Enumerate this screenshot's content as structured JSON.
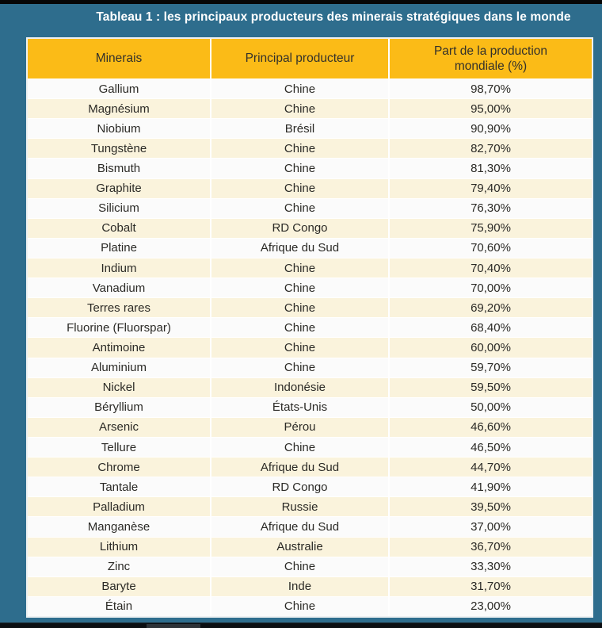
{
  "page": {
    "title": "Tableau 1 : les principaux producteurs des minerais stratégiques dans le monde"
  },
  "colors": {
    "page_background": "#2E6D8D",
    "header_background": "#FBBB17",
    "row_background": "#FBFBFB",
    "row_alt_background": "#FAF3DC",
    "title_text": "#FFFFFF",
    "cell_text": "#2B2A26",
    "top_bar": "#060606",
    "bottom_bar": "#0B0E12",
    "scrollbar_thumb": "#2E3338"
  },
  "table": {
    "columns": [
      {
        "key": "mineral",
        "label": "Minerais"
      },
      {
        "key": "producer",
        "label": "Principal producteur"
      },
      {
        "key": "share",
        "label": "Part de la production mondiale (%)"
      }
    ],
    "rows": [
      {
        "mineral": "Gallium",
        "producer": "Chine",
        "share": "98,70%"
      },
      {
        "mineral": "Magnésium",
        "producer": "Chine",
        "share": "95,00%"
      },
      {
        "mineral": "Niobium",
        "producer": "Brésil",
        "share": "90,90%"
      },
      {
        "mineral": "Tungstène",
        "producer": "Chine",
        "share": "82,70%"
      },
      {
        "mineral": "Bismuth",
        "producer": "Chine",
        "share": "81,30%"
      },
      {
        "mineral": "Graphite",
        "producer": "Chine",
        "share": "79,40%"
      },
      {
        "mineral": "Silicium",
        "producer": "Chine",
        "share": "76,30%"
      },
      {
        "mineral": "Cobalt",
        "producer": "RD Congo",
        "share": "75,90%"
      },
      {
        "mineral": "Platine",
        "producer": "Afrique du Sud",
        "share": "70,60%"
      },
      {
        "mineral": "Indium",
        "producer": "Chine",
        "share": "70,40%"
      },
      {
        "mineral": "Vanadium",
        "producer": "Chine",
        "share": "70,00%"
      },
      {
        "mineral": "Terres rares",
        "producer": "Chine",
        "share": "69,20%"
      },
      {
        "mineral": "Fluorine (Fluorspar)",
        "producer": "Chine",
        "share": "68,40%"
      },
      {
        "mineral": "Antimoine",
        "producer": "Chine",
        "share": "60,00%"
      },
      {
        "mineral": "Aluminium",
        "producer": "Chine",
        "share": "59,70%"
      },
      {
        "mineral": "Nickel",
        "producer": "Indonésie",
        "share": "59,50%"
      },
      {
        "mineral": "Béryllium",
        "producer": "États-Unis",
        "share": "50,00%"
      },
      {
        "mineral": "Arsenic",
        "producer": "Pérou",
        "share": "46,60%"
      },
      {
        "mineral": "Tellure",
        "producer": "Chine",
        "share": "46,50%"
      },
      {
        "mineral": "Chrome",
        "producer": "Afrique du Sud",
        "share": "44,70%"
      },
      {
        "mineral": "Tantale",
        "producer": "RD Congo",
        "share": "41,90%"
      },
      {
        "mineral": "Palladium",
        "producer": "Russie",
        "share": "39,50%"
      },
      {
        "mineral": "Manganèse",
        "producer": "Afrique du Sud",
        "share": "37,00%"
      },
      {
        "mineral": "Lithium",
        "producer": "Australie",
        "share": "36,70%"
      },
      {
        "mineral": "Zinc",
        "producer": "Chine",
        "share": "33,30%"
      },
      {
        "mineral": "Baryte",
        "producer": "Inde",
        "share": "31,70%"
      },
      {
        "mineral": "Étain",
        "producer": "Chine",
        "share": "23,00%"
      }
    ]
  }
}
